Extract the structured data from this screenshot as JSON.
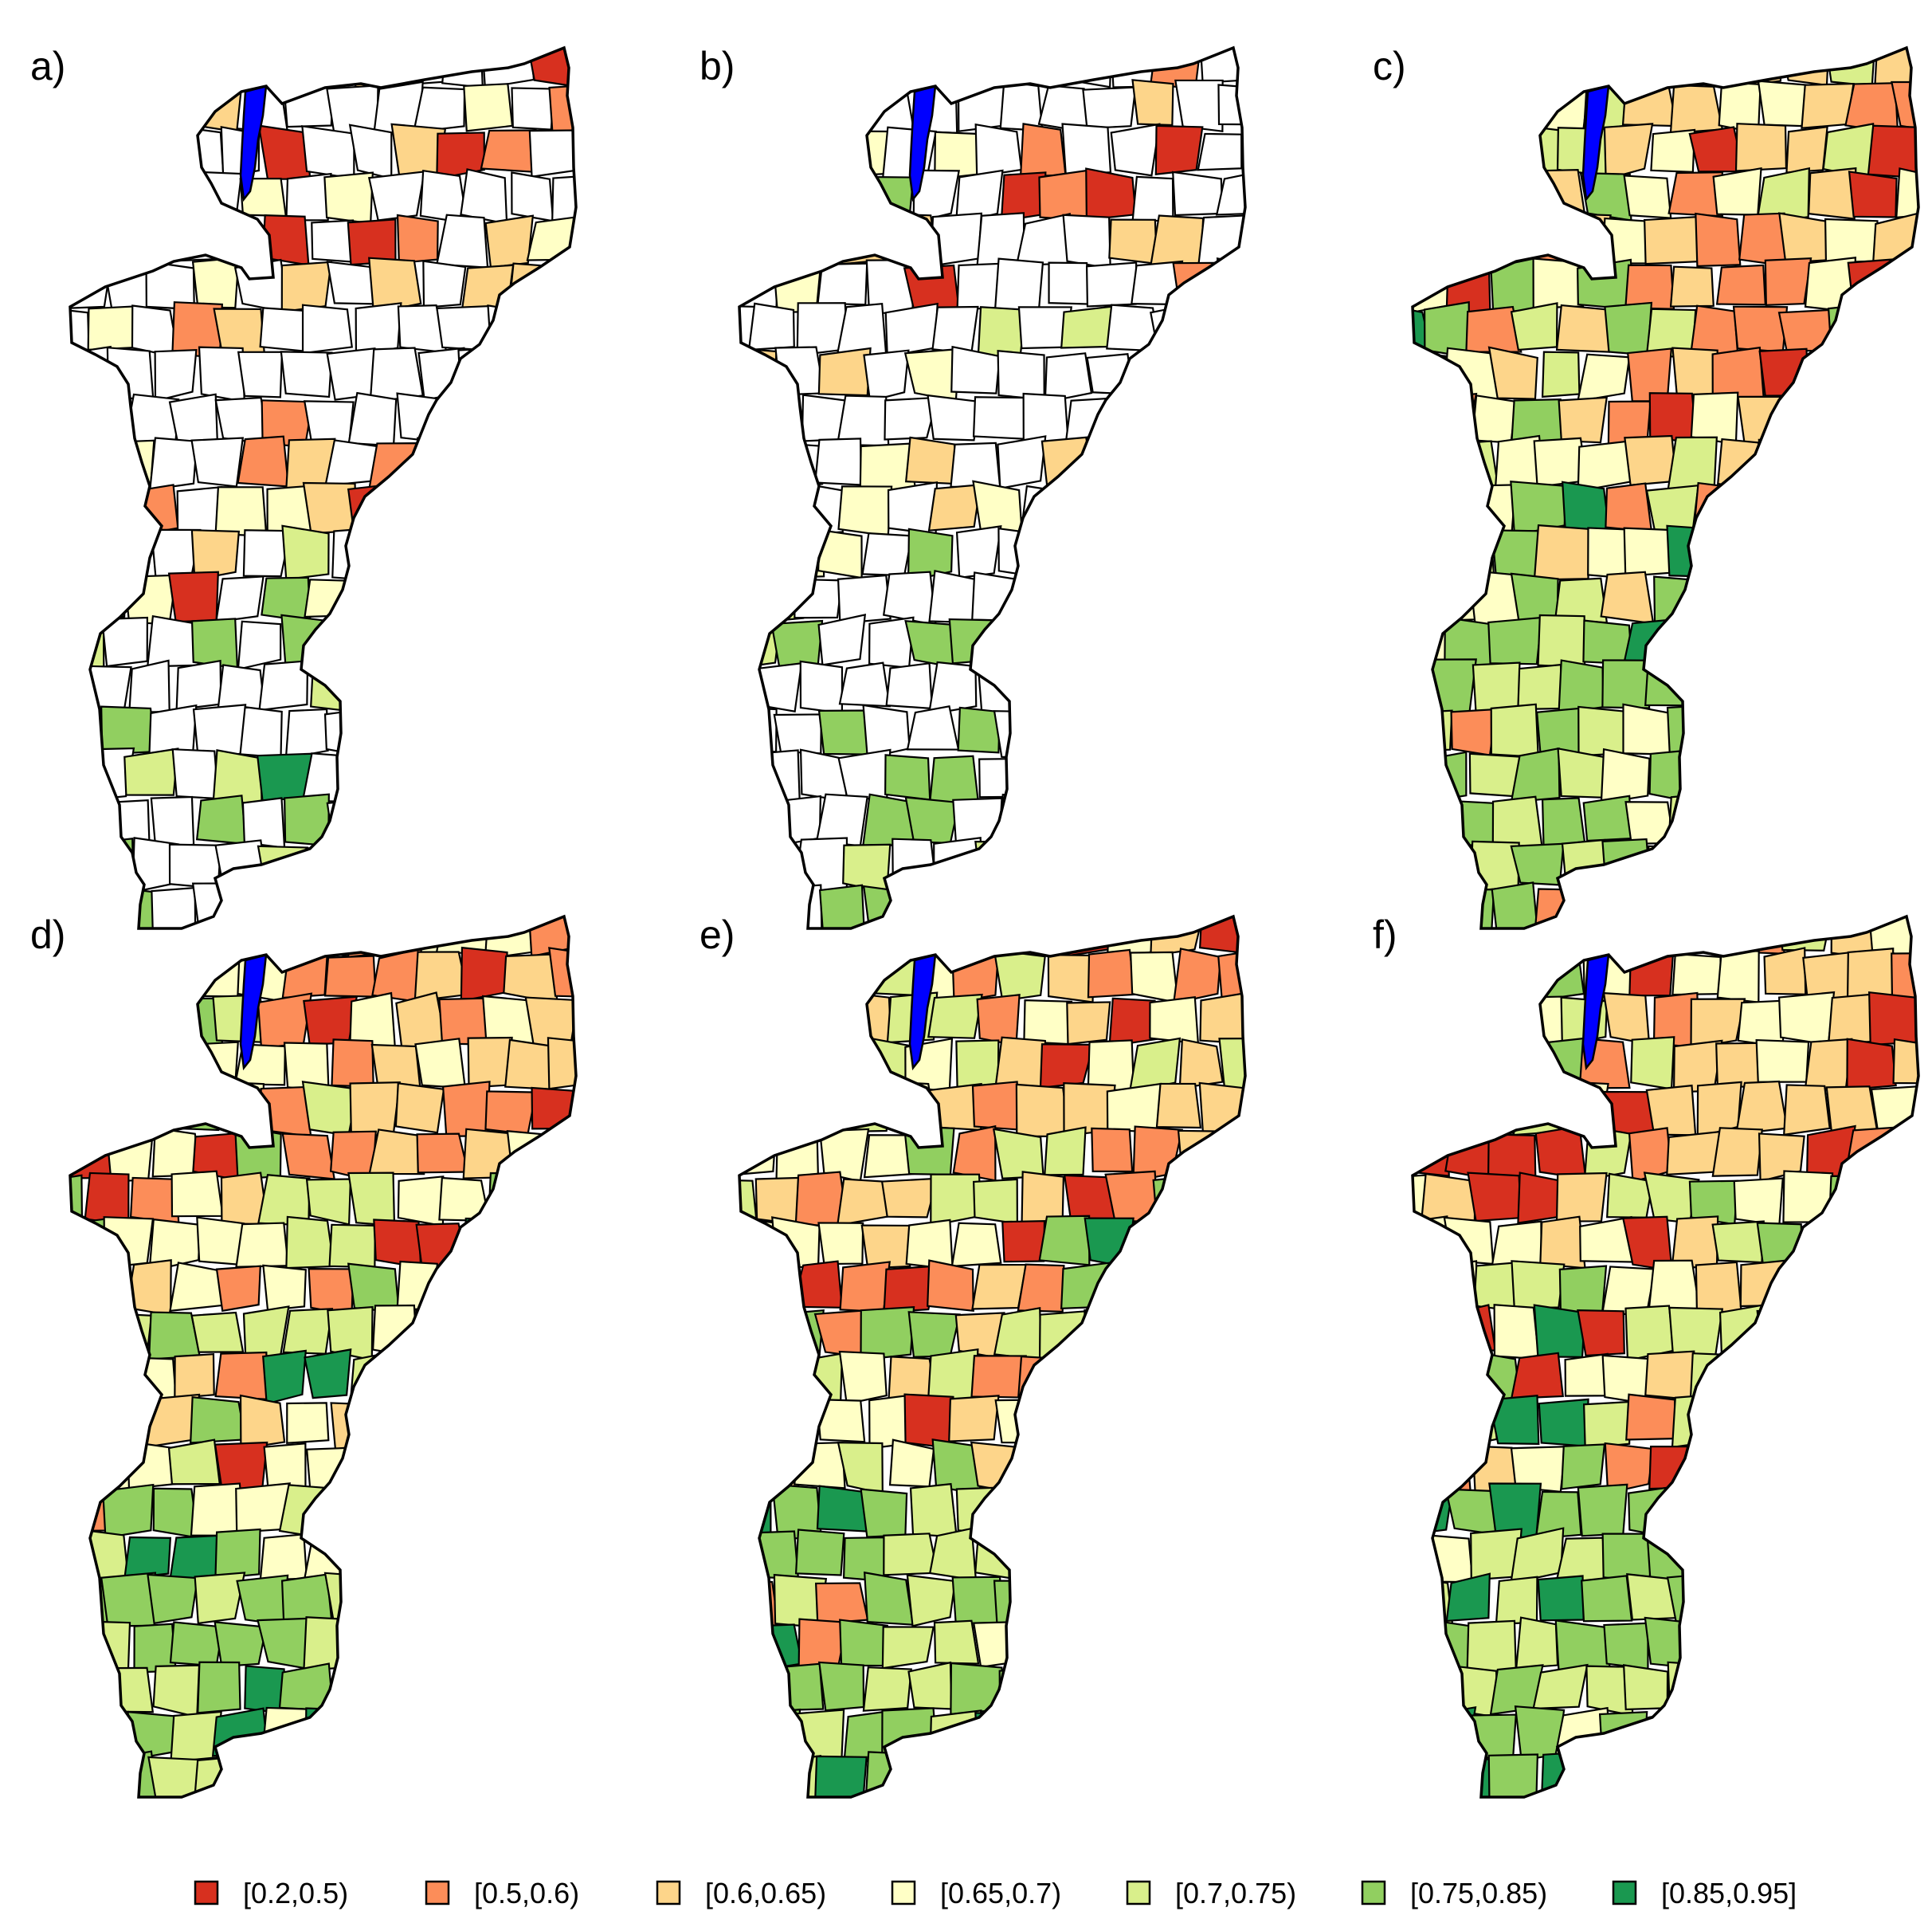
{
  "panels": [
    {
      "label": "a)",
      "missing_share": 0.62
    },
    {
      "label": "b)",
      "missing_share": 0.58
    },
    {
      "label": "c)",
      "missing_share": 0
    },
    {
      "label": "d)",
      "missing_share": 0
    },
    {
      "label": "e)",
      "missing_share": 0
    },
    {
      "label": "f)",
      "missing_share": 0
    }
  ],
  "legend": [
    {
      "label": "[0.2,0.5)",
      "color": "#d7301f"
    },
    {
      "label": "[0.5,0.6)",
      "color": "#fc8d59"
    },
    {
      "label": "[0.6,0.65)",
      "color": "#fdd58a"
    },
    {
      "label": "[0.65,0.7)",
      "color": "#ffffc6"
    },
    {
      "label": "[0.7,0.75)",
      "color": "#d9ef8b"
    },
    {
      "label": "[0.75,0.85)",
      "color": "#91cf60"
    },
    {
      "label": "[0.85,0.95]",
      "color": "#1a9850"
    }
  ],
  "colors": {
    "lake": "#0000ff",
    "missing": "#ffffff",
    "border": "#000000"
  }
}
